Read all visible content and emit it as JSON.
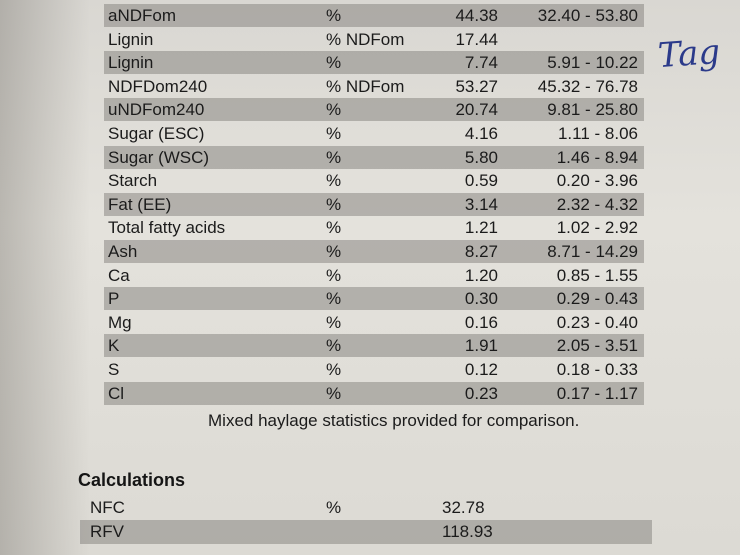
{
  "rows": [
    {
      "name": "aNDFom",
      "unit": "%",
      "value": "44.38",
      "range": "32.40 - 53.80",
      "shaded": true
    },
    {
      "name": "Lignin",
      "unit": "% NDFom",
      "value": "17.44",
      "range": "",
      "shaded": false
    },
    {
      "name": "Lignin",
      "unit": "%",
      "value": "7.74",
      "range": "5.91 - 10.22",
      "shaded": true
    },
    {
      "name": "NDFDom240",
      "unit": "% NDFom",
      "value": "53.27",
      "range": "45.32 - 76.78",
      "shaded": false
    },
    {
      "name": "uNDFom240",
      "unit": "%",
      "value": "20.74",
      "range": "9.81 - 25.80",
      "shaded": true
    },
    {
      "name": "Sugar (ESC)",
      "unit": "%",
      "value": "4.16",
      "range": "1.11 - 8.06",
      "shaded": false
    },
    {
      "name": "Sugar (WSC)",
      "unit": "%",
      "value": "5.80",
      "range": "1.46 - 8.94",
      "shaded": true
    },
    {
      "name": "Starch",
      "unit": "%",
      "value": "0.59",
      "range": "0.20 - 3.96",
      "shaded": false
    },
    {
      "name": "Fat (EE)",
      "unit": "%",
      "value": "3.14",
      "range": "2.32 - 4.32",
      "shaded": true
    },
    {
      "name": "Total fatty acids",
      "unit": "%",
      "value": "1.21",
      "range": "1.02 - 2.92",
      "shaded": false
    },
    {
      "name": "Ash",
      "unit": "%",
      "value": "8.27",
      "range": "8.71 - 14.29",
      "shaded": true
    },
    {
      "name": "Ca",
      "unit": "%",
      "value": "1.20",
      "range": "0.85 - 1.55",
      "shaded": false
    },
    {
      "name": "P",
      "unit": "%",
      "value": "0.30",
      "range": "0.29 - 0.43",
      "shaded": true
    },
    {
      "name": "Mg",
      "unit": "%",
      "value": "0.16",
      "range": "0.23 - 0.40",
      "shaded": false
    },
    {
      "name": "K",
      "unit": "%",
      "value": "1.91",
      "range": "2.05 - 3.51",
      "shaded": true
    },
    {
      "name": "S",
      "unit": "%",
      "value": "0.12",
      "range": "0.18 - 0.33",
      "shaded": false
    },
    {
      "name": "Cl",
      "unit": "%",
      "value": "0.23",
      "range": "0.17 - 1.17",
      "shaded": true
    }
  ],
  "note": "Mixed haylage statistics provided for comparison.",
  "calculations": {
    "title": "Calculations",
    "rows": [
      {
        "name": "NFC",
        "unit": "%",
        "value": "32.78",
        "shaded": false
      },
      {
        "name": "RFV",
        "unit": "",
        "value": "118.93",
        "shaded": true
      }
    ]
  },
  "handwriting": "Tag"
}
